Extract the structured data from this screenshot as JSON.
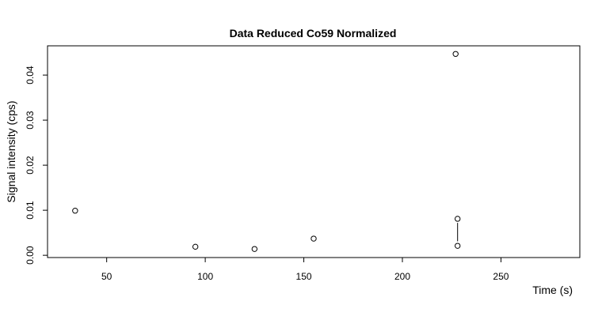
{
  "chart_data": {
    "type": "scatter",
    "title": "Data Reduced Co59 Normalized",
    "xlabel": "Time (s)",
    "ylabel": "Signal intensity (cps)",
    "xlim": [
      20,
      290
    ],
    "ylim": [
      -0.0005,
      0.0465
    ],
    "xticks": [
      50,
      100,
      150,
      200,
      250
    ],
    "xtick_labels": [
      "50",
      "100",
      "150",
      "200",
      "250"
    ],
    "yticks": [
      0.0,
      0.01,
      0.02,
      0.03,
      0.04
    ],
    "ytick_labels": [
      "0.00",
      "0.01",
      "0.02",
      "0.03",
      "0.04"
    ],
    "grid": false,
    "points": [
      {
        "x": 34,
        "y": 0.0099
      },
      {
        "x": 95,
        "y": 0.0019
      },
      {
        "x": 125,
        "y": 0.0014
      },
      {
        "x": 155,
        "y": 0.0037
      },
      {
        "x": 227,
        "y": 0.0447
      },
      {
        "x": 228,
        "y": 0.0081
      },
      {
        "x": 228,
        "y": 0.0021
      }
    ],
    "segments": [
      {
        "x1": 228,
        "y1": 0.0072,
        "x2": 228,
        "y2": 0.0031
      }
    ]
  }
}
